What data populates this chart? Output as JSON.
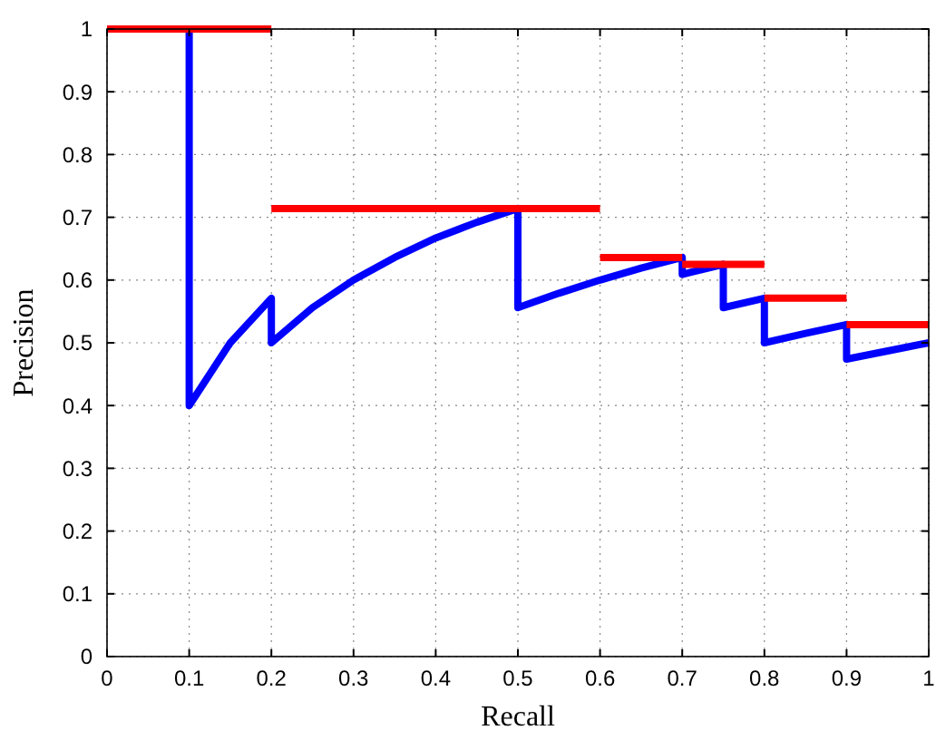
{
  "chart_data": {
    "type": "line",
    "xlabel": "Recall",
    "ylabel": "Precision",
    "xlim": [
      0,
      1
    ],
    "ylim": [
      0,
      1
    ],
    "xticks": [
      0,
      0.1,
      0.2,
      0.3,
      0.4,
      0.5,
      0.6,
      0.7,
      0.8,
      0.9,
      1
    ],
    "yticks": [
      0,
      0.1,
      0.2,
      0.3,
      0.4,
      0.5,
      0.6,
      0.7,
      0.8,
      0.9,
      1
    ],
    "grid": true,
    "marker": "none",
    "line_style": "solid",
    "series": [
      {
        "color": "#0000ff",
        "x": [
          0.1,
          0.1,
          0.15,
          0.2,
          0.2,
          0.25,
          0.3,
          0.35,
          0.4,
          0.45,
          0.5,
          0.5,
          0.55,
          0.6,
          0.65,
          0.7,
          0.7,
          0.75,
          0.75,
          0.8,
          0.8,
          0.85,
          0.9,
          0.9,
          0.95,
          1
        ],
        "values": [
          1,
          0.4,
          0.5,
          0.571,
          0.5,
          0.556,
          0.6,
          0.636,
          0.667,
          0.692,
          0.714,
          0.556,
          0.579,
          0.6,
          0.619,
          0.636,
          0.609,
          0.625,
          0.556,
          0.571,
          0.5,
          0.515,
          0.529,
          0.474,
          0.487,
          0.5
        ]
      },
      {
        "color": "#ff0000",
        "x": [
          0,
          0.2
        ],
        "values": [
          1,
          1
        ]
      },
      {
        "color": "#ff0000",
        "x": [
          0.2,
          0.6
        ],
        "values": [
          0.714,
          0.714
        ]
      },
      {
        "color": "#ff0000",
        "x": [
          0.6,
          0.7
        ],
        "values": [
          0.636,
          0.636
        ]
      },
      {
        "color": "#ff0000",
        "x": [
          0.7,
          0.8
        ],
        "values": [
          0.625,
          0.625
        ]
      },
      {
        "color": "#ff0000",
        "x": [
          0.8,
          0.9
        ],
        "values": [
          0.571,
          0.571
        ]
      },
      {
        "color": "#ff0000",
        "x": [
          0.9,
          1
        ],
        "values": [
          0.529,
          0.529
        ]
      }
    ]
  }
}
